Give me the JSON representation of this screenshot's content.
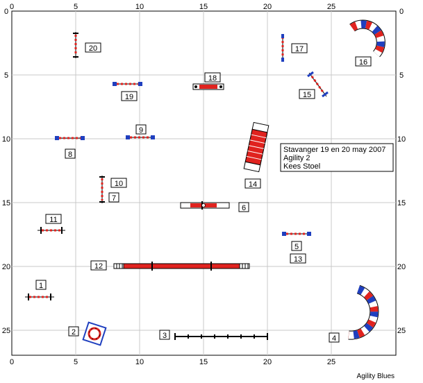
{
  "course": {
    "axis_x_ticks": [
      "0",
      "5",
      "10",
      "15",
      "20",
      "25"
    ],
    "axis_y_ticks": [
      "0",
      "5",
      "10",
      "15",
      "20",
      "25"
    ],
    "info_lines": [
      "Stavanger 19 en 20 may 2007",
      "Agility 2",
      "Kees Stoel"
    ],
    "footer": "Agility Blues",
    "obstacle_numbers": [
      "1",
      "2",
      "3",
      "4",
      "5",
      "6",
      "7",
      "8",
      "9",
      "10",
      "11",
      "12",
      "13",
      "14",
      "15",
      "16",
      "17",
      "18",
      "19",
      "20"
    ]
  },
  "colors": {
    "grid": "#c8c8c8",
    "frame": "#000000",
    "bar_red": "#e0231f",
    "bar_blue": "#1f3fbf",
    "tunnel_white": "#ffffff"
  }
}
